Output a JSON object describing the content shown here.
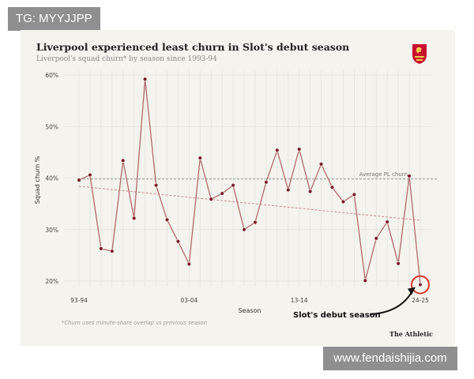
{
  "watermarks": {
    "top_left": "TG: MYYJJPP",
    "bottom_right": "www.fendaishijia.com"
  },
  "title": "Liverpool experienced least churn in Slot's debut season",
  "subtitle": "Liverpool's squad churn* by season since 1993-94",
  "footnote": "*Churn uses minute-share overlap vs previous season",
  "brand": "The Athletic",
  "logo_icon": "liverbird-crest-icon",
  "colors": {
    "line": "#b06a6a",
    "marker_fill": "#7a1f2b",
    "average": "#999999",
    "trend": "#d08a8a",
    "highlight": "#d9372a"
  },
  "chart_data": {
    "type": "line",
    "xlabel": "Season",
    "ylabel": "Squad churn %",
    "ylim": [
      17,
      62
    ],
    "x_tick_labels": [
      "93-94",
      "03-04",
      "13-14",
      "24-25"
    ],
    "x_tick_positions": [
      0,
      10,
      20,
      31
    ],
    "y_ticks": [
      20,
      30,
      40,
      50,
      60
    ],
    "y_tick_labels": [
      "20%",
      "30%",
      "40%",
      "50%",
      "60%"
    ],
    "average_label": "Average PL churn",
    "average_value": 39.8,
    "trend_start": 38.4,
    "trend_end": 31.8,
    "annotation": "Slot's debut season",
    "series": [
      {
        "x": [
          0,
          1,
          2,
          3,
          4,
          5,
          6,
          7,
          8,
          9,
          10,
          11,
          12,
          13,
          14,
          15,
          16,
          17,
          18,
          19,
          20,
          21,
          22,
          23,
          24,
          25,
          26,
          27,
          28,
          29,
          30,
          31
        ],
        "values": [
          39.6,
          40.6,
          26.3,
          25.8,
          43.4,
          32.2,
          59.2,
          38.6,
          31.9,
          27.7,
          23.3,
          43.9,
          35.9,
          37.0,
          38.6,
          30.0,
          31.4,
          39.2,
          45.4,
          37.7,
          45.6,
          37.4,
          42.7,
          38.2,
          35.4,
          36.8,
          20.1,
          28.3,
          31.5,
          23.4,
          40.4,
          19.3
        ]
      }
    ]
  }
}
